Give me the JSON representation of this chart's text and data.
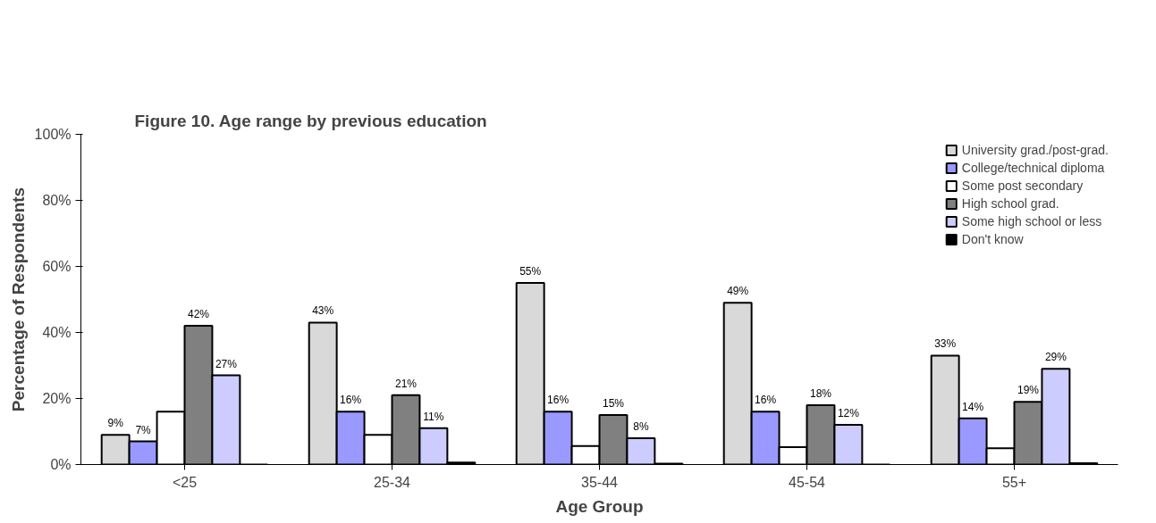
{
  "chart_data": {
    "type": "bar",
    "title": "Figure 10. Age range by previous education",
    "xlabel": "Age Group",
    "ylabel": "Percentage of Respondents",
    "categories": [
      "<25",
      "25-34",
      "35-44",
      "45-54",
      "55+"
    ],
    "series": [
      {
        "name": "University grad./post-grad.",
        "color": "#d9d9d9",
        "values": [
          9,
          43,
          55,
          49,
          33
        ],
        "value_labels": [
          "9%",
          "43%",
          "55%",
          "49%",
          "33%"
        ]
      },
      {
        "name": "College/technical diploma",
        "color": "#9999ff",
        "values": [
          7,
          16,
          16,
          16,
          14
        ],
        "value_labels": [
          "7%",
          "16%",
          "16%",
          "16%",
          "14%"
        ]
      },
      {
        "name": "Some post secondary",
        "color": "#ffffff",
        "values": [
          16,
          9,
          5.6,
          5.3,
          4.9
        ],
        "value_labels": [
          null,
          null,
          null,
          null,
          null
        ]
      },
      {
        "name": "High school grad.",
        "color": "#808080",
        "values": [
          42,
          21,
          15,
          18,
          19
        ],
        "value_labels": [
          "42%",
          "21%",
          "15%",
          "18%",
          "19%"
        ]
      },
      {
        "name": "Some high school or less",
        "color": "#ccccff",
        "values": [
          27,
          11,
          8,
          12,
          29
        ],
        "value_labels": [
          "27%",
          "11%",
          "8%",
          "12%",
          "29%"
        ]
      },
      {
        "name": "Don't know",
        "color": "#000000",
        "values": [
          0,
          0.6,
          0.3,
          0,
          0.4
        ],
        "value_labels": [
          null,
          null,
          null,
          null,
          null
        ]
      }
    ],
    "ylim": [
      0,
      100
    ],
    "yticks": [
      {
        "value": 0,
        "label": "0%"
      },
      {
        "value": 20,
        "label": "20%"
      },
      {
        "value": 40,
        "label": "40%"
      },
      {
        "value": 60,
        "label": "60%"
      },
      {
        "value": 80,
        "label": "80%"
      },
      {
        "value": 100,
        "label": "100%"
      }
    ],
    "grid": false,
    "legend": "top right"
  }
}
